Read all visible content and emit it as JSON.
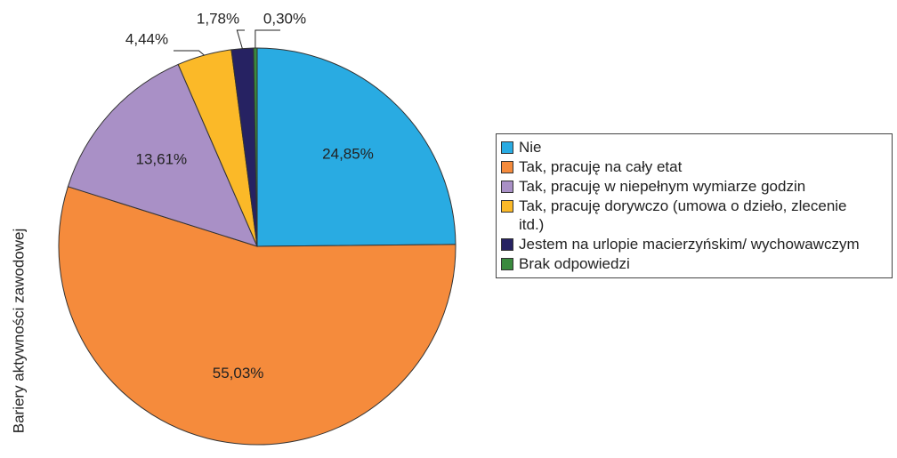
{
  "chart_data": {
    "type": "pie",
    "y_axis_label": "Bariery aktywności zawodowej",
    "categories": [
      "Nie",
      "Tak, pracuję na cały etat",
      "Tak, pracuję w niepełnym wymiarze godzin",
      "Tak, pracuję dorywczo (umowa o dzieło, zlecenie itd.)",
      "Jestem na urlopie macierzyńskim/ wychowawczym",
      "Brak odpowiedzi"
    ],
    "values": [
      24.85,
      55.03,
      13.61,
      4.44,
      1.78,
      0.3
    ],
    "value_labels": [
      "24,85%",
      "55,03%",
      "13,61%",
      "4,44%",
      "1,78%",
      "0,30%"
    ],
    "colors": [
      "#29abe2",
      "#f58b3c",
      "#a990c6",
      "#fbb928",
      "#262262",
      "#3a8a3e"
    ],
    "legend": "right"
  }
}
